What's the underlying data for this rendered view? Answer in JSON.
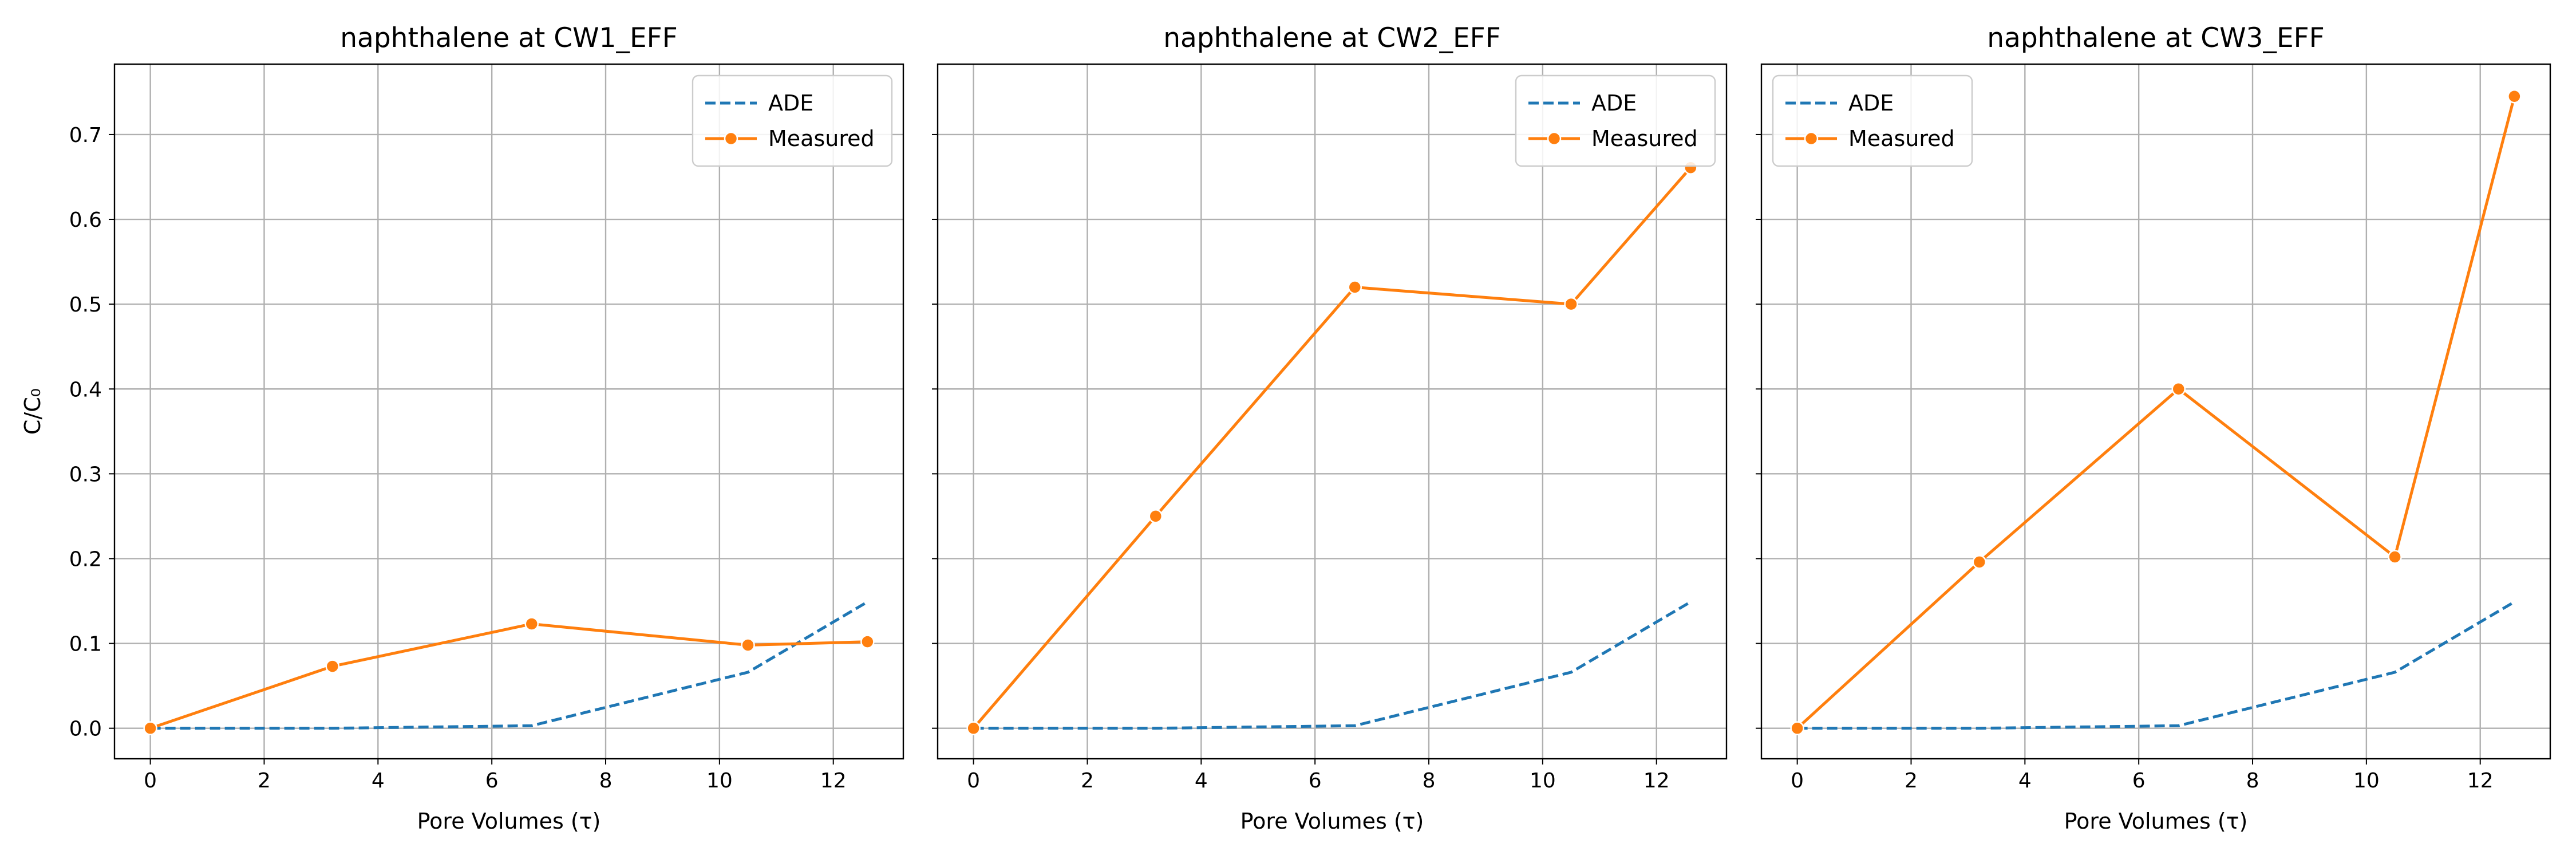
{
  "colors": {
    "ade": "#1f77b4",
    "measured": "#ff7f0e",
    "grid": "#b0b0b0"
  },
  "legend": {
    "ade": "ADE",
    "measured": "Measured"
  },
  "chart_data": [
    {
      "type": "line",
      "title": "naphthalene at CW1_EFF",
      "xlabel": "Pore Volumes (τ)",
      "ylabel": "C/C₀",
      "xlim": [
        -0.63,
        13.23
      ],
      "ylim": [
        -0.036,
        0.783
      ],
      "xticks": [
        "0",
        "2",
        "4",
        "6",
        "8",
        "10",
        "12"
      ],
      "yticks": [
        "0.0",
        "0.1",
        "0.2",
        "0.3",
        "0.4",
        "0.5",
        "0.6",
        "0.7"
      ],
      "grid": true,
      "legend_position": "top-right",
      "series": [
        {
          "name": "ADE",
          "style": "dashed",
          "x": [
            0,
            3.2,
            6.7,
            10.5,
            12.6
          ],
          "y": [
            0.0,
            0.0,
            0.003,
            0.066,
            0.149
          ]
        },
        {
          "name": "Measured",
          "style": "solid-markers",
          "x": [
            0,
            3.2,
            6.7,
            10.5,
            12.6
          ],
          "y": [
            0.0,
            0.073,
            0.123,
            0.098,
            0.102
          ]
        }
      ]
    },
    {
      "type": "line",
      "title": "naphthalene at CW2_EFF",
      "xlabel": "Pore Volumes (τ)",
      "ylabel": "",
      "xlim": [
        -0.63,
        13.23
      ],
      "ylim": [
        -0.036,
        0.783
      ],
      "xticks": [
        "0",
        "2",
        "4",
        "6",
        "8",
        "10",
        "12"
      ],
      "yticks": [],
      "grid": true,
      "legend_position": "top-right",
      "series": [
        {
          "name": "ADE",
          "style": "dashed",
          "x": [
            0,
            3.2,
            6.7,
            10.5,
            12.6
          ],
          "y": [
            0.0,
            0.0,
            0.003,
            0.066,
            0.149
          ]
        },
        {
          "name": "Measured",
          "style": "solid-markers",
          "x": [
            0,
            3.2,
            6.7,
            10.5,
            12.6
          ],
          "y": [
            0.0,
            0.25,
            0.52,
            0.5,
            0.661
          ]
        }
      ]
    },
    {
      "type": "line",
      "title": "naphthalene at CW3_EFF",
      "xlabel": "Pore Volumes (τ)",
      "ylabel": "",
      "xlim": [
        -0.63,
        13.23
      ],
      "ylim": [
        -0.036,
        0.783
      ],
      "xticks": [
        "0",
        "2",
        "4",
        "6",
        "8",
        "10",
        "12"
      ],
      "yticks": [],
      "grid": true,
      "legend_position": "top-left",
      "series": [
        {
          "name": "ADE",
          "style": "dashed",
          "x": [
            0,
            3.2,
            6.7,
            10.5,
            12.6
          ],
          "y": [
            0.0,
            0.0,
            0.003,
            0.066,
            0.149
          ]
        },
        {
          "name": "Measured",
          "style": "solid-markers",
          "x": [
            0,
            3.2,
            6.7,
            10.5,
            12.6
          ],
          "y": [
            0.0,
            0.196,
            0.4,
            0.202,
            0.745
          ]
        }
      ]
    }
  ]
}
